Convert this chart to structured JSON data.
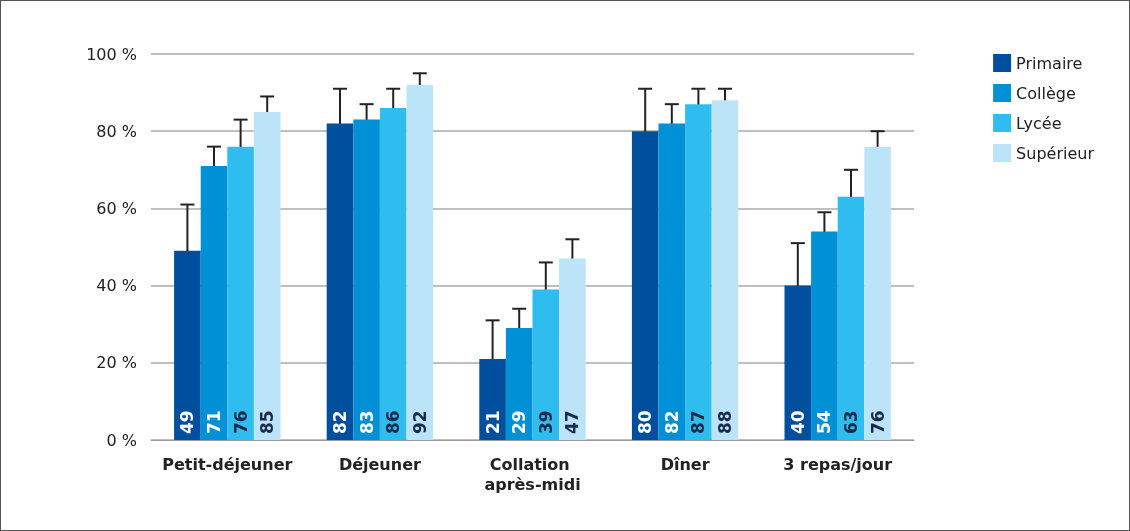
{
  "chart_data": {
    "type": "bar",
    "categories": [
      "Petit-déjeuner",
      "Déjeuner",
      "Collation après-midi",
      "Dîner",
      "3 repas/jour"
    ],
    "series": [
      {
        "name": "Primaire",
        "color": "#004f9f",
        "values": [
          49,
          82,
          21,
          80,
          40
        ],
        "errors": [
          12,
          9,
          10,
          11,
          11
        ]
      },
      {
        "name": "Collège",
        "color": "#0090d5",
        "values": [
          71,
          83,
          29,
          82,
          54
        ],
        "errors": [
          5,
          4,
          5,
          5,
          5
        ]
      },
      {
        "name": "Lycée",
        "color": "#2fbdf0",
        "values": [
          76,
          86,
          39,
          87,
          63
        ],
        "errors": [
          7,
          5,
          7,
          4,
          7
        ]
      },
      {
        "name": "Supérieur",
        "color": "#bce4f8",
        "values": [
          85,
          92,
          47,
          88,
          76
        ],
        "errors": [
          4,
          3,
          5,
          3,
          4
        ]
      }
    ],
    "ylim": [
      0,
      100
    ],
    "yticks": [
      {
        "value": 0,
        "label": "0 %"
      },
      {
        "value": 20,
        "label": "20 %"
      },
      {
        "value": 40,
        "label": "40 %"
      },
      {
        "value": 60,
        "label": "60 %"
      },
      {
        "value": 80,
        "label": "80 %"
      },
      {
        "value": 100,
        "label": "100 %"
      }
    ],
    "grid": "y",
    "legend": "top right",
    "data_labels": true
  }
}
